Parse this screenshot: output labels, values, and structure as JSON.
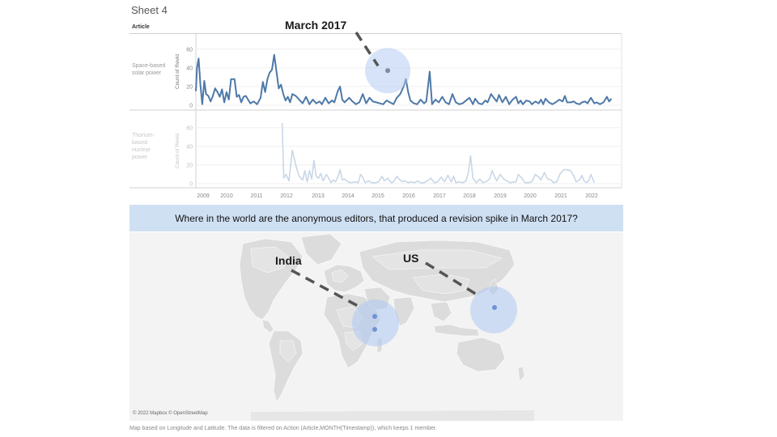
{
  "sheet": {
    "title": "Sheet 4",
    "article_header": "Article"
  },
  "rows": [
    {
      "label_lines": [
        "Space-based",
        "solar power"
      ],
      "axis_title": "Count of Revid",
      "faded": false
    },
    {
      "label_lines": [
        "Thorium-",
        "based",
        "nuclear",
        "power"
      ],
      "axis_title": "Count of Revid",
      "faded": true
    }
  ],
  "callouts": {
    "chart": "March 2017",
    "map_india": "India",
    "map_us": "US"
  },
  "question": "Where in the world are the anonymous editors, that produced a revision spike in March 2017?",
  "map": {
    "attribution": "© 2022 Mapbox © OpenStreetMap"
  },
  "footnote": "Map based on Longitude and Latitude. The data is filtered on Action (Article,MONTH(Timestamp)), which keeps 1 member.",
  "colors": {
    "line": "#4e79a7",
    "faded_line": "#c9d7e6",
    "highlight": "#aec8f2",
    "question_bg": "#cfe0f3"
  },
  "chart_data": [
    {
      "type": "line",
      "series": [
        {
          "name": "Space-based solar power",
          "points": [
            [
              2008.75,
              15
            ],
            [
              2008.8,
              40
            ],
            [
              2008.87,
              50
            ],
            [
              2008.95,
              22
            ],
            [
              2009.03,
              1
            ],
            [
              2009.12,
              26
            ],
            [
              2009.2,
              12
            ],
            [
              2009.3,
              10
            ],
            [
              2009.4,
              4
            ],
            [
              2009.5,
              10
            ],
            [
              2009.6,
              18
            ],
            [
              2009.7,
              14
            ],
            [
              2009.8,
              9
            ],
            [
              2009.9,
              17
            ],
            [
              2010.0,
              3
            ],
            [
              2010.1,
              14
            ],
            [
              2010.2,
              6
            ],
            [
              2010.3,
              28
            ],
            [
              2010.45,
              28
            ],
            [
              2010.55,
              9
            ],
            [
              2010.65,
              11
            ],
            [
              2010.75,
              3
            ],
            [
              2010.85,
              9
            ],
            [
              2010.95,
              10
            ],
            [
              2011.05,
              6
            ],
            [
              2011.15,
              2
            ],
            [
              2011.3,
              4
            ],
            [
              2011.45,
              1
            ],
            [
              2011.6,
              8
            ],
            [
              2011.7,
              25
            ],
            [
              2011.8,
              14
            ],
            [
              2011.9,
              28
            ],
            [
              2012.0,
              35
            ],
            [
              2012.1,
              38
            ],
            [
              2012.2,
              54
            ],
            [
              2012.3,
              36
            ],
            [
              2012.4,
              18
            ],
            [
              2012.5,
              22
            ],
            [
              2012.6,
              12
            ],
            [
              2012.7,
              5
            ],
            [
              2012.8,
              9
            ],
            [
              2012.9,
              3
            ],
            [
              2013.0,
              12
            ],
            [
              2013.15,
              10
            ],
            [
              2013.3,
              6
            ],
            [
              2013.45,
              2
            ],
            [
              2013.6,
              9
            ],
            [
              2013.75,
              1
            ],
            [
              2013.9,
              6
            ],
            [
              2014.05,
              2
            ],
            [
              2014.2,
              4
            ],
            [
              2014.3,
              1
            ],
            [
              2014.45,
              8
            ],
            [
              2014.6,
              2
            ],
            [
              2014.75,
              5
            ],
            [
              2014.85,
              3
            ],
            [
              2015.0,
              15
            ],
            [
              2015.1,
              20
            ],
            [
              2015.2,
              6
            ],
            [
              2015.3,
              3
            ],
            [
              2015.5,
              8
            ],
            [
              2015.65,
              4
            ],
            [
              2015.8,
              1
            ],
            [
              2015.95,
              3
            ],
            [
              2016.1,
              12
            ],
            [
              2016.25,
              2
            ],
            [
              2016.4,
              8
            ],
            [
              2016.55,
              4
            ],
            [
              2016.7,
              3
            ],
            [
              2016.85,
              2
            ],
            [
              2017.0,
              1
            ],
            [
              2017.15,
              5
            ],
            [
              2017.3,
              3
            ],
            [
              2017.45,
              1
            ],
            [
              2017.6,
              8
            ],
            [
              2017.75,
              12
            ],
            [
              2017.9,
              20
            ],
            [
              2018.0,
              28
            ],
            [
              2018.1,
              14
            ],
            [
              2018.2,
              5
            ],
            [
              2018.35,
              2
            ],
            [
              2018.5,
              1
            ],
            [
              2018.65,
              6
            ],
            [
              2018.8,
              2
            ],
            [
              2018.9,
              4
            ],
            [
              2019.05,
              36
            ],
            [
              2019.15,
              1
            ],
            [
              2019.3,
              6
            ],
            [
              2019.45,
              3
            ],
            [
              2019.6,
              9
            ],
            [
              2019.75,
              3
            ],
            [
              2019.9,
              1
            ],
            [
              2020.05,
              12
            ],
            [
              2020.2,
              3
            ],
            [
              2020.35,
              1
            ],
            [
              2020.5,
              2
            ],
            [
              2020.65,
              5
            ],
            [
              2020.8,
              8
            ],
            [
              2020.95,
              1
            ],
            [
              2021.05,
              7
            ],
            [
              2021.2,
              2
            ],
            [
              2021.35,
              1
            ],
            [
              2021.5,
              5
            ],
            [
              2021.6,
              3
            ],
            [
              2021.75,
              12
            ],
            [
              2021.9,
              7
            ],
            [
              2022.0,
              4
            ],
            [
              2022.1,
              11
            ],
            [
              2022.25,
              3
            ],
            [
              2022.4,
              9
            ],
            [
              2022.55,
              1
            ],
            [
              2022.7,
              6
            ],
            [
              2022.85,
              9
            ],
            [
              2022.95,
              2
            ],
            [
              2023.05,
              5
            ],
            [
              2023.15,
              1
            ],
            [
              2023.3,
              5
            ],
            [
              2023.45,
              4
            ],
            [
              2023.55,
              1
            ],
            [
              2023.7,
              4
            ],
            [
              2023.85,
              2
            ],
            [
              2023.95,
              6
            ],
            [
              2024.05,
              1
            ],
            [
              2024.15,
              7
            ],
            [
              2024.3,
              3
            ],
            [
              2024.45,
              1
            ],
            [
              2024.6,
              3
            ],
            [
              2024.75,
              6
            ],
            [
              2024.9,
              4
            ],
            [
              2025.0,
              10
            ],
            [
              2025.1,
              3
            ],
            [
              2025.25,
              3
            ],
            [
              2025.4,
              4
            ],
            [
              2025.5,
              2
            ],
            [
              2025.65,
              1
            ],
            [
              2025.75,
              3
            ],
            [
              2025.9,
              4
            ],
            [
              2026.0,
              2
            ],
            [
              2026.15,
              8
            ],
            [
              2026.3,
              2
            ],
            [
              2026.4,
              3
            ],
            [
              2026.55,
              1
            ],
            [
              2026.7,
              3
            ],
            [
              2026.85,
              9
            ],
            [
              2026.95,
              4
            ],
            [
              2027.05,
              7
            ]
          ]
        }
      ],
      "highlight": {
        "label": "March 2017",
        "x": 2017.2,
        "y": 37
      },
      "xlim": [
        2008.75,
        2027.5
      ],
      "ylim": [
        0,
        65
      ],
      "yticks": [
        0,
        20,
        40,
        60
      ],
      "xticks": [
        2009,
        2010,
        2011,
        2012,
        2013,
        2014,
        2015,
        2016,
        2017,
        2018,
        2019,
        2020,
        2021,
        2022
      ],
      "ylabel": "Count of Revid"
    },
    {
      "type": "line",
      "series": [
        {
          "name": "Thorium-based nuclear power",
          "points": [
            [
              2012.55,
              65
            ],
            [
              2012.62,
              6
            ],
            [
              2012.72,
              10
            ],
            [
              2012.85,
              3
            ],
            [
              2013.0,
              36
            ],
            [
              2013.15,
              20
            ],
            [
              2013.3,
              8
            ],
            [
              2013.45,
              4
            ],
            [
              2013.55,
              14
            ],
            [
              2013.65,
              2
            ],
            [
              2013.75,
              14
            ],
            [
              2013.85,
              5
            ],
            [
              2013.95,
              25
            ],
            [
              2014.05,
              8
            ],
            [
              2014.15,
              6
            ],
            [
              2014.25,
              11
            ],
            [
              2014.35,
              3
            ],
            [
              2014.5,
              10
            ],
            [
              2014.6,
              6
            ],
            [
              2014.7,
              1
            ],
            [
              2014.8,
              4
            ],
            [
              2014.9,
              2
            ],
            [
              2015.0,
              7
            ],
            [
              2015.1,
              15
            ],
            [
              2015.2,
              4
            ],
            [
              2015.3,
              5
            ],
            [
              2015.45,
              2
            ],
            [
              2015.6,
              1
            ],
            [
              2015.75,
              2
            ],
            [
              2015.9,
              1
            ],
            [
              2016.0,
              10
            ],
            [
              2016.1,
              7
            ],
            [
              2016.2,
              1
            ],
            [
              2016.35,
              3
            ],
            [
              2016.5,
              1
            ],
            [
              2016.65,
              1
            ],
            [
              2016.8,
              2
            ],
            [
              2016.95,
              8
            ],
            [
              2017.05,
              3
            ],
            [
              2017.2,
              6
            ],
            [
              2017.35,
              1
            ],
            [
              2017.45,
              2
            ],
            [
              2017.6,
              8
            ],
            [
              2017.7,
              5
            ],
            [
              2017.85,
              2
            ],
            [
              2017.95,
              3
            ],
            [
              2018.1,
              1
            ],
            [
              2018.25,
              2
            ],
            [
              2018.4,
              1
            ],
            [
              2018.5,
              3
            ],
            [
              2018.65,
              1
            ],
            [
              2018.8,
              1
            ],
            [
              2018.95,
              3
            ],
            [
              2019.1,
              6
            ],
            [
              2019.25,
              1
            ],
            [
              2019.4,
              2
            ],
            [
              2019.55,
              7
            ],
            [
              2019.7,
              2
            ],
            [
              2019.85,
              9
            ],
            [
              2020.0,
              2
            ],
            [
              2020.1,
              8
            ],
            [
              2020.2,
              1
            ],
            [
              2020.35,
              2
            ],
            [
              2020.5,
              1
            ],
            [
              2020.65,
              3
            ],
            [
              2020.75,
              12
            ],
            [
              2020.85,
              30
            ],
            [
              2020.95,
              6
            ],
            [
              2021.1,
              1
            ],
            [
              2021.25,
              5
            ],
            [
              2021.4,
              1
            ],
            [
              2021.5,
              2
            ],
            [
              2021.6,
              3
            ],
            [
              2021.7,
              6
            ],
            [
              2021.8,
              14
            ],
            [
              2021.9,
              8
            ],
            [
              2022.0,
              3
            ],
            [
              2022.15,
              10
            ],
            [
              2022.3,
              5
            ],
            [
              2022.45,
              3
            ],
            [
              2022.6,
              1
            ],
            [
              2022.75,
              2
            ],
            [
              2022.85,
              2
            ],
            [
              2022.95,
              10
            ],
            [
              2023.1,
              6
            ],
            [
              2023.25,
              1
            ],
            [
              2023.4,
              1
            ],
            [
              2023.55,
              2
            ],
            [
              2023.7,
              10
            ],
            [
              2023.85,
              7
            ],
            [
              2023.95,
              4
            ],
            [
              2024.1,
              12
            ],
            [
              2024.25,
              5
            ],
            [
              2024.4,
              4
            ],
            [
              2024.5,
              1
            ],
            [
              2024.65,
              2
            ],
            [
              2024.8,
              11
            ],
            [
              2024.95,
              15
            ],
            [
              2025.1,
              15
            ],
            [
              2025.25,
              14
            ],
            [
              2025.4,
              8
            ],
            [
              2025.5,
              2
            ],
            [
              2025.65,
              4
            ],
            [
              2025.75,
              9
            ],
            [
              2025.85,
              3
            ],
            [
              2025.95,
              1
            ],
            [
              2026.05,
              3
            ],
            [
              2026.15,
              10
            ],
            [
              2026.3,
              1
            ]
          ]
        }
      ],
      "xlim": [
        2008.75,
        2027.5
      ],
      "ylim": [
        0,
        65
      ],
      "yticks": [
        0,
        20,
        40,
        60
      ],
      "xticks": [
        2009,
        2010,
        2011,
        2012,
        2013,
        2014,
        2015,
        2016,
        2017,
        2018,
        2019,
        2020,
        2021,
        2022
      ],
      "ylabel": "Count of Revid"
    }
  ]
}
